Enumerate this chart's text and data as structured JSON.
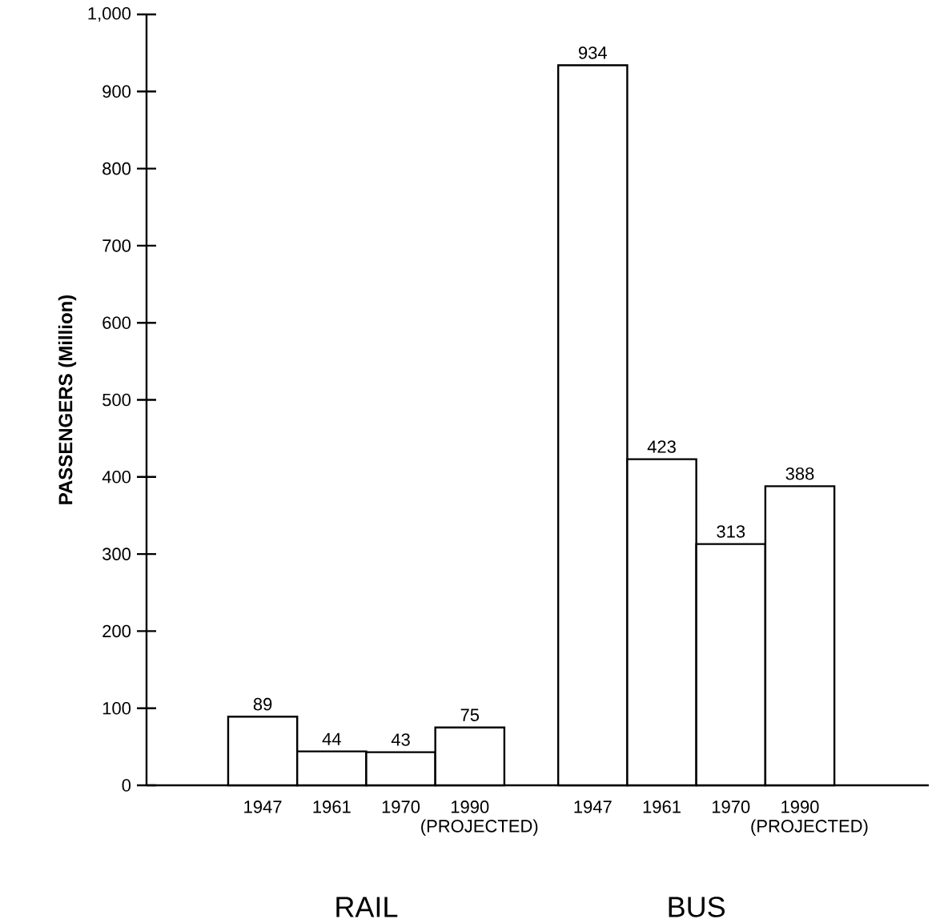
{
  "chart_data": {
    "type": "bar",
    "ylabel": "PASSENGERS (Million)",
    "categories": [
      "1947",
      "1961",
      "1970",
      "1990 (PROJECTED)",
      "1947",
      "1961",
      "1970",
      "1990 (PROJECTED)"
    ],
    "values": [
      89,
      44,
      43,
      75,
      934,
      423,
      313,
      388
    ],
    "color": "#ffffff",
    "data_labels": true,
    "ylim": [
      0,
      1000
    ],
    "yticks": [
      0,
      100,
      200,
      300,
      400,
      500,
      600,
      700,
      800,
      900,
      {
        "value": 1000,
        "label": "1,000"
      }
    ],
    "annotations": [
      "RAIL",
      "BUS"
    ]
  }
}
